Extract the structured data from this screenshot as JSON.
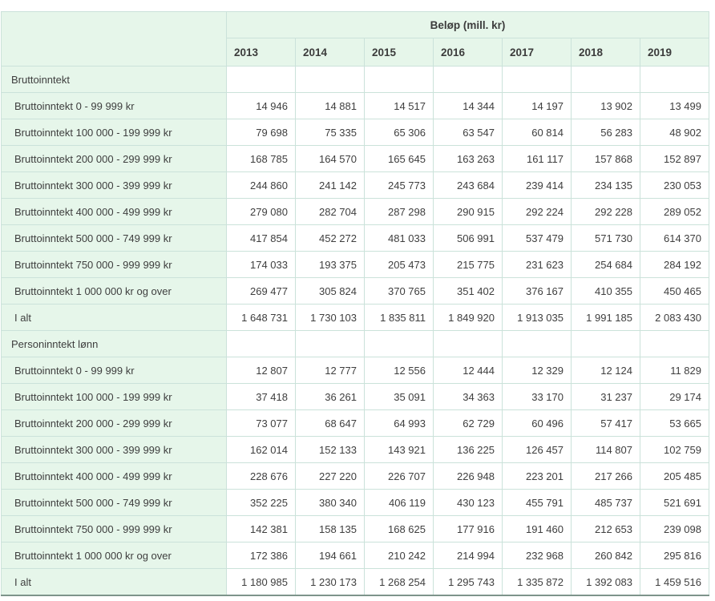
{
  "theme": {
    "header_bg": "#e6f6ea",
    "cell_bg": "#ffffff",
    "border_color": "#cbe2da",
    "outer_bottom_border": "#7e948b",
    "text_color": "#3e3e3e"
  },
  "chart_data": {
    "type": "table",
    "title": "Beløp (mill. kr)",
    "columns": [
      "2013",
      "2014",
      "2015",
      "2016",
      "2017",
      "2018",
      "2019"
    ],
    "sections": [
      {
        "title": "Bruttoinntekt",
        "rows": [
          {
            "label": "Bruttoinntekt 0 - 99 999 kr",
            "values": [
              "14 946",
              "14 881",
              "14 517",
              "14 344",
              "14 197",
              "13 902",
              "13 499"
            ]
          },
          {
            "label": "Bruttoinntekt 100 000 - 199 999 kr",
            "values": [
              "79 698",
              "75 335",
              "65 306",
              "63 547",
              "60 814",
              "56 283",
              "48 902"
            ]
          },
          {
            "label": "Bruttoinntekt 200 000 - 299 999 kr",
            "values": [
              "168 785",
              "164 570",
              "165 645",
              "163 263",
              "161 117",
              "157 868",
              "152 897"
            ]
          },
          {
            "label": "Bruttoinntekt 300 000 - 399 999 kr",
            "values": [
              "244 860",
              "241 142",
              "245 773",
              "243 684",
              "239 414",
              "234 135",
              "230 053"
            ]
          },
          {
            "label": "Bruttoinntekt 400 000 - 499 999 kr",
            "values": [
              "279 080",
              "282 704",
              "287 298",
              "290 915",
              "292 224",
              "292 228",
              "289 052"
            ]
          },
          {
            "label": "Bruttoinntekt 500 000 - 749 999 kr",
            "values": [
              "417 854",
              "452 272",
              "481 033",
              "506 991",
              "537 479",
              "571 730",
              "614 370"
            ]
          },
          {
            "label": "Bruttoinntekt 750 000 - 999 999 kr",
            "values": [
              "174 033",
              "193 375",
              "205 473",
              "215 775",
              "231 623",
              "254 684",
              "284 192"
            ]
          },
          {
            "label": "Bruttoinntekt 1 000 000 kr og over",
            "values": [
              "269 477",
              "305 824",
              "370 765",
              "351 402",
              "376 167",
              "410 355",
              "450 465"
            ]
          }
        ],
        "total": {
          "label": "I alt",
          "values": [
            "1 648 731",
            "1 730 103",
            "1 835 811",
            "1 849 920",
            "1 913 035",
            "1 991 185",
            "2 083 430"
          ]
        }
      },
      {
        "title": "Personinntekt lønn",
        "rows": [
          {
            "label": "Bruttoinntekt 0 - 99 999 kr",
            "values": [
              "12 807",
              "12 777",
              "12 556",
              "12 444",
              "12 329",
              "12 124",
              "11 829"
            ]
          },
          {
            "label": "Bruttoinntekt 100 000 - 199 999 kr",
            "values": [
              "37 418",
              "36 261",
              "35 091",
              "34 363",
              "33 170",
              "31 237",
              "29 174"
            ]
          },
          {
            "label": "Bruttoinntekt 200 000 - 299 999 kr",
            "values": [
              "73 077",
              "68 647",
              "64 993",
              "62 729",
              "60 496",
              "57 417",
              "53 665"
            ]
          },
          {
            "label": "Bruttoinntekt 300 000 - 399 999 kr",
            "values": [
              "162 014",
              "152 133",
              "143 921",
              "136 225",
              "126 457",
              "114 807",
              "102 759"
            ]
          },
          {
            "label": "Bruttoinntekt 400 000 - 499 999 kr",
            "values": [
              "228 676",
              "227 220",
              "226 707",
              "226 948",
              "223 201",
              "217 266",
              "205 485"
            ]
          },
          {
            "label": "Bruttoinntekt 500 000 - 749 999 kr",
            "values": [
              "352 225",
              "380 340",
              "406 119",
              "430 123",
              "455 791",
              "485 737",
              "521 691"
            ]
          },
          {
            "label": "Bruttoinntekt 750 000 - 999 999 kr",
            "values": [
              "142 381",
              "158 135",
              "168 625",
              "177 916",
              "191 460",
              "212 653",
              "239 098"
            ]
          },
          {
            "label": "Bruttoinntekt 1 000 000 kr og over",
            "values": [
              "172 386",
              "194 661",
              "210 242",
              "214 994",
              "232 968",
              "260 842",
              "295 816"
            ]
          }
        ],
        "total": {
          "label": "I alt",
          "values": [
            "1 180 985",
            "1 230 173",
            "1 268 254",
            "1 295 743",
            "1 335 872",
            "1 392 083",
            "1 459 516"
          ]
        }
      }
    ]
  }
}
